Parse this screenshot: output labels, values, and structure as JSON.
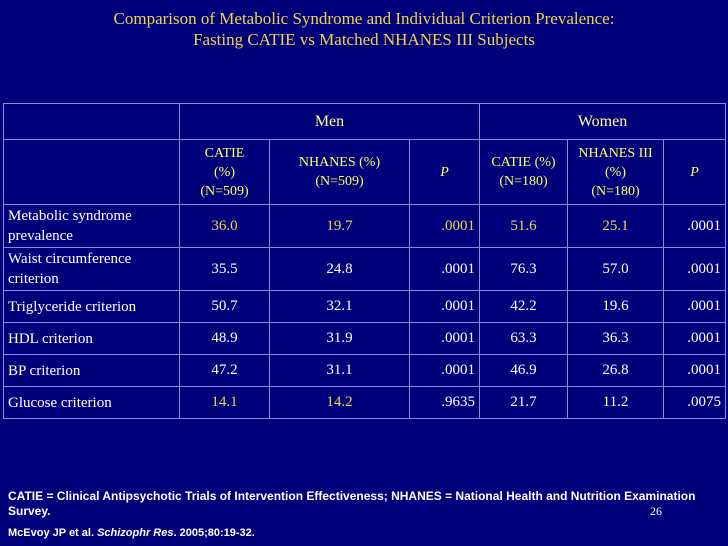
{
  "title": {
    "line1": "Comparison of Metabolic Syndrome and Individual Criterion Prevalence:",
    "line2": "Fasting CATIE vs Matched NHANES III Subjects"
  },
  "table": {
    "groups": [
      "Men",
      "Women"
    ],
    "columns": [
      {
        "label": "CATIE\n(%)\n(N=509)",
        "italic": false
      },
      {
        "label": "NHANES (%)\n(N=509)",
        "italic": false
      },
      {
        "label": "P",
        "italic": true
      },
      {
        "label": "CATIE (%)\n(N=180)",
        "italic": false
      },
      {
        "label": "NHANES III\n(%)\n(N=180)",
        "italic": false
      },
      {
        "label": "P",
        "italic": true
      }
    ],
    "rows": [
      {
        "label": "Metabolic syndrome prevalence",
        "values": [
          "36.0",
          "19.7",
          ".0001",
          "51.6",
          "25.1",
          ".0001"
        ],
        "highlight": [
          true,
          true,
          true,
          true,
          true,
          false
        ],
        "tall": true
      },
      {
        "label": "Waist circumference criterion",
        "values": [
          "35.5",
          "24.8",
          ".0001",
          "76.3",
          "57.0",
          ".0001"
        ],
        "highlight": [
          false,
          false,
          false,
          false,
          false,
          false
        ],
        "tall": true
      },
      {
        "label": "Triglyceride criterion",
        "values": [
          "50.7",
          "32.1",
          ".0001",
          "42.2",
          "19.6",
          ".0001"
        ],
        "highlight": [
          false,
          false,
          false,
          false,
          false,
          false
        ],
        "tall": false
      },
      {
        "label": "HDL criterion",
        "values": [
          "48.9",
          "31.9",
          ".0001",
          "63.3",
          "36.3",
          ".0001"
        ],
        "highlight": [
          false,
          false,
          false,
          false,
          false,
          false
        ],
        "tall": false
      },
      {
        "label": "BP criterion",
        "values": [
          "47.2",
          "31.1",
          ".0001",
          "46.9",
          "26.8",
          ".0001"
        ],
        "highlight": [
          false,
          false,
          false,
          false,
          false,
          false
        ],
        "tall": false
      },
      {
        "label": "Glucose criterion",
        "values": [
          "14.1",
          "14.2",
          ".9635",
          "21.7",
          "11.2",
          ".0075"
        ],
        "highlight": [
          true,
          true,
          false,
          false,
          false,
          false
        ],
        "tall": false
      }
    ]
  },
  "footer": {
    "definitions": "CATIE = Clinical Antipsychotic Trials of Intervention Effectiveness;  NHANES = National Health and Nutrition Examination Survey.",
    "citation_authors": "McEvoy JP et al. ",
    "citation_journal": "Schizophr Res",
    "citation_rest": ". 2005;80:19-32."
  },
  "page_number": "26",
  "colors": {
    "background": "#00007a",
    "title": "#f2d34a",
    "highlight": "#f2d34a",
    "header_text": "#ffff66",
    "grid": "#8a8ad8"
  }
}
